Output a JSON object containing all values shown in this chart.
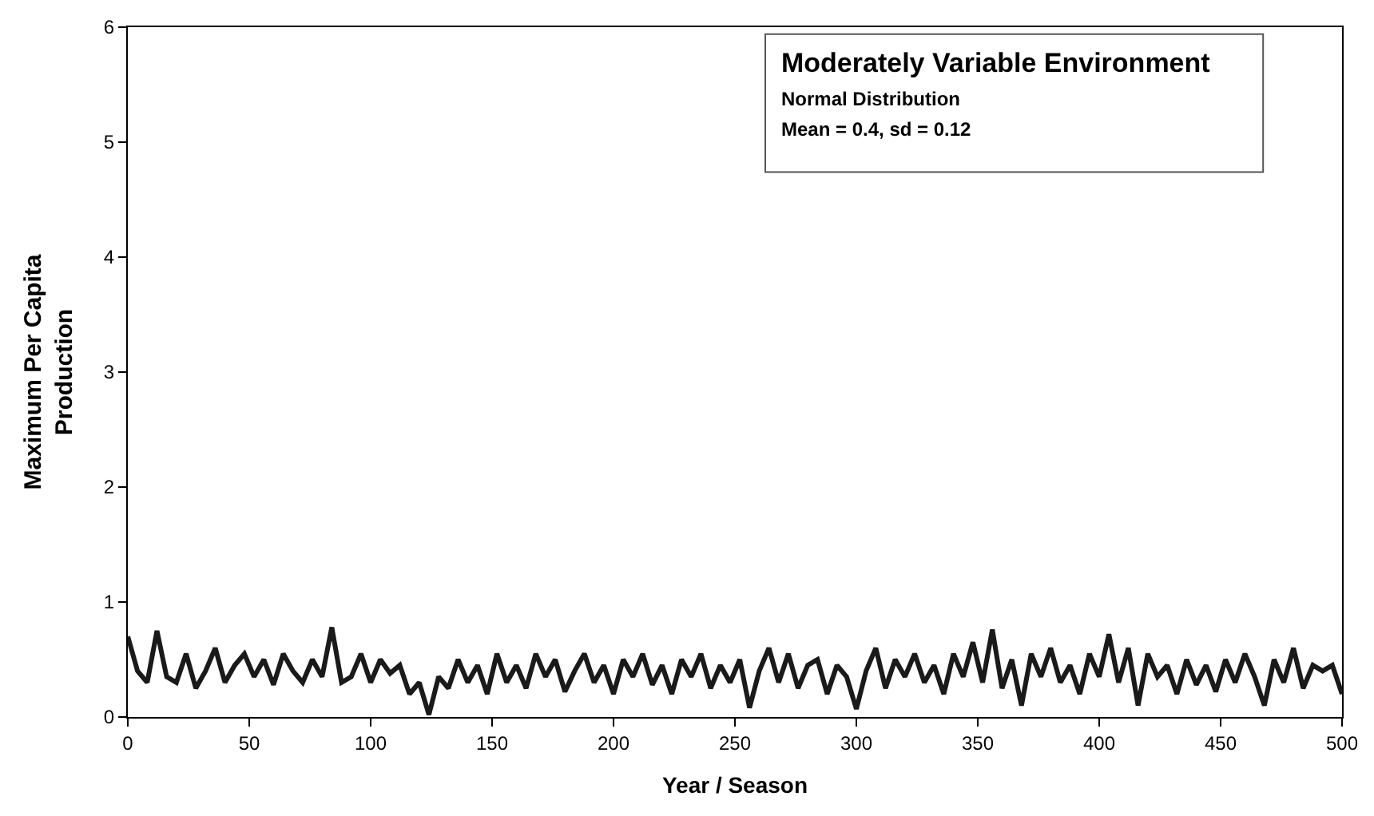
{
  "chart_data": {
    "type": "line",
    "xlabel": "Year / Season",
    "ylabel": "Maximum Per Capita\nProduction",
    "annotations": [
      "Moderately Variable Environment",
      "Normal Distribution",
      "Mean = 0.4, sd = 0.12"
    ],
    "x": [
      0,
      4,
      8,
      12,
      16,
      20,
      24,
      28,
      32,
      36,
      40,
      44,
      48,
      52,
      56,
      60,
      64,
      68,
      72,
      76,
      80,
      84,
      88,
      92,
      96,
      100,
      104,
      108,
      112,
      116,
      120,
      124,
      128,
      132,
      136,
      140,
      144,
      148,
      152,
      156,
      160,
      164,
      168,
      172,
      176,
      180,
      184,
      188,
      192,
      196,
      200,
      204,
      208,
      212,
      216,
      220,
      224,
      228,
      232,
      236,
      240,
      244,
      248,
      252,
      256,
      260,
      264,
      268,
      272,
      276,
      280,
      284,
      288,
      292,
      296,
      300,
      304,
      308,
      312,
      316,
      320,
      324,
      328,
      332,
      336,
      340,
      344,
      348,
      352,
      356,
      360,
      364,
      368,
      372,
      376,
      380,
      384,
      388,
      392,
      396,
      400,
      404,
      408,
      412,
      416,
      420,
      424,
      428,
      432,
      436,
      440,
      444,
      448,
      452,
      456,
      460,
      464,
      468,
      472,
      476,
      480,
      484,
      488,
      492,
      496,
      500
    ],
    "series": [
      {
        "color": "#1a1a1a",
        "values": [
          0.7,
          0.4,
          0.3,
          0.75,
          0.35,
          0.3,
          0.55,
          0.25,
          0.4,
          0.6,
          0.3,
          0.45,
          0.55,
          0.35,
          0.5,
          0.28,
          0.55,
          0.4,
          0.3,
          0.5,
          0.35,
          0.78,
          0.3,
          0.35,
          0.55,
          0.3,
          0.5,
          0.38,
          0.45,
          0.2,
          0.3,
          0.02,
          0.35,
          0.25,
          0.5,
          0.3,
          0.45,
          0.2,
          0.55,
          0.3,
          0.45,
          0.25,
          0.55,
          0.35,
          0.5,
          0.22,
          0.4,
          0.55,
          0.3,
          0.45,
          0.2,
          0.5,
          0.35,
          0.55,
          0.28,
          0.45,
          0.2,
          0.5,
          0.35,
          0.55,
          0.25,
          0.45,
          0.3,
          0.5,
          0.08,
          0.4,
          0.6,
          0.3,
          0.55,
          0.25,
          0.45,
          0.5,
          0.2,
          0.45,
          0.35,
          0.07,
          0.4,
          0.6,
          0.25,
          0.5,
          0.35,
          0.55,
          0.3,
          0.45,
          0.2,
          0.55,
          0.35,
          0.65,
          0.3,
          0.76,
          0.25,
          0.5,
          0.1,
          0.55,
          0.35,
          0.6,
          0.3,
          0.45,
          0.2,
          0.55,
          0.35,
          0.72,
          0.3,
          0.6,
          0.1,
          0.55,
          0.35,
          0.45,
          0.2,
          0.5,
          0.28,
          0.45,
          0.22,
          0.5,
          0.3,
          0.55,
          0.35,
          0.1,
          0.5,
          0.3,
          0.6,
          0.25,
          0.45,
          0.4,
          0.45,
          0.2
        ]
      }
    ],
    "xlim": [
      0,
      500
    ],
    "xticks": [
      0,
      50,
      100,
      150,
      200,
      250,
      300,
      350,
      400,
      450,
      500
    ],
    "ylim": [
      0,
      6
    ],
    "yticks": [
      0,
      1,
      2,
      3,
      4,
      5,
      6
    ],
    "marker": "none",
    "line_style": "solid"
  }
}
